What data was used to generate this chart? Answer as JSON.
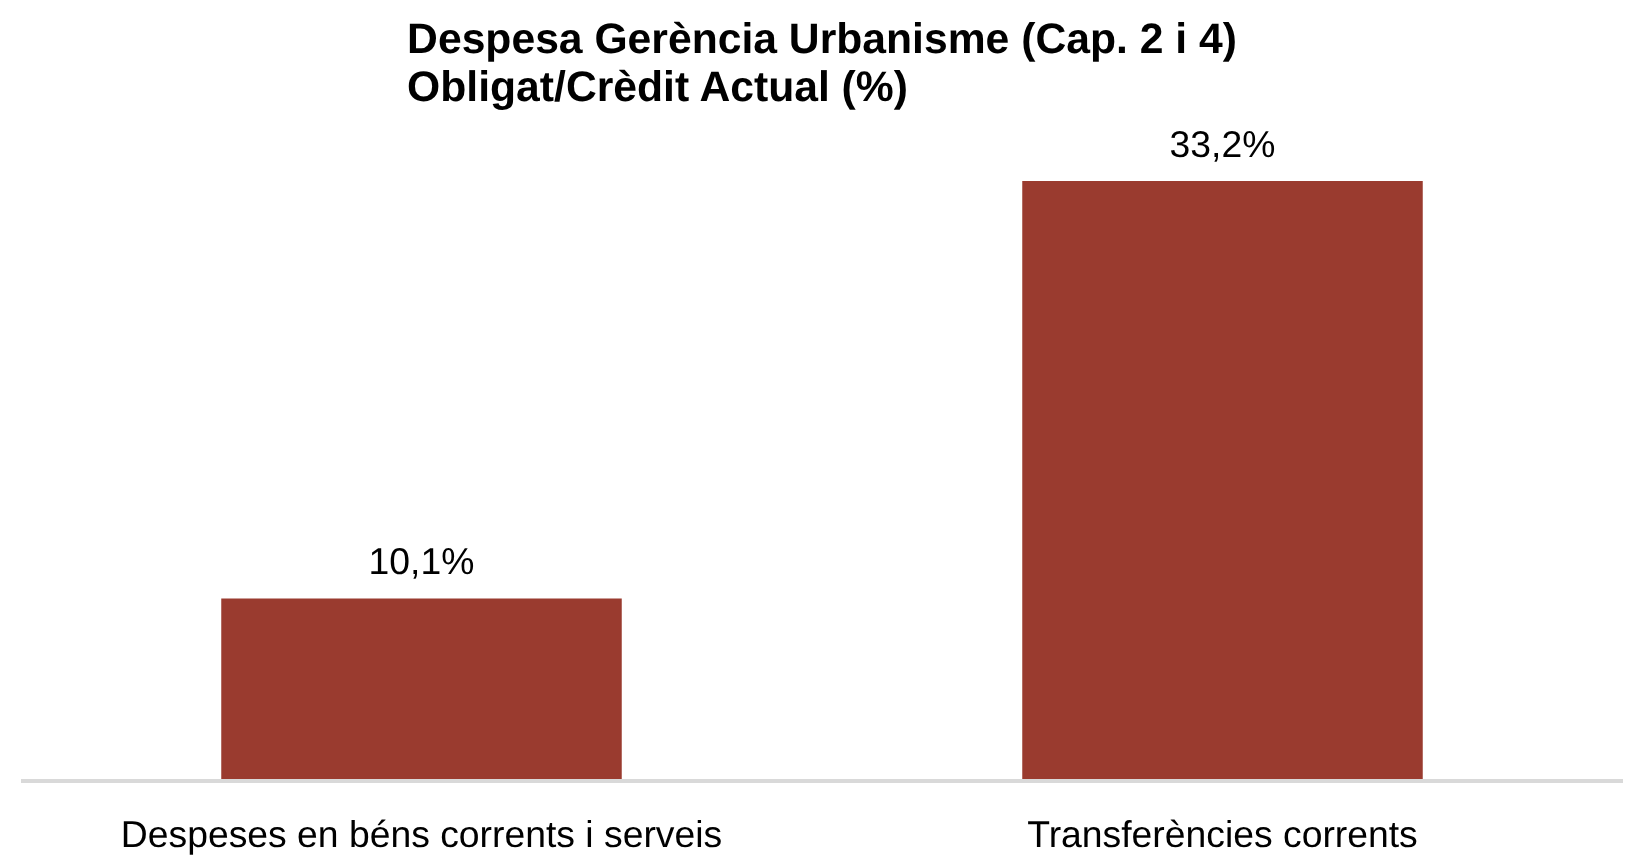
{
  "chart_data": {
    "type": "bar",
    "title": "Despesa Gerència Urbanisme (Cap. 2 i 4)\nObligat/Crèdit Actual (%)",
    "categories": [
      "Despeses en béns corrents i serveis",
      "Transferències corrents"
    ],
    "values": [
      10.1,
      33.2
    ],
    "value_labels": [
      "10,1%",
      "33,2%"
    ],
    "color": "#9a3b2f",
    "grid": false
  }
}
